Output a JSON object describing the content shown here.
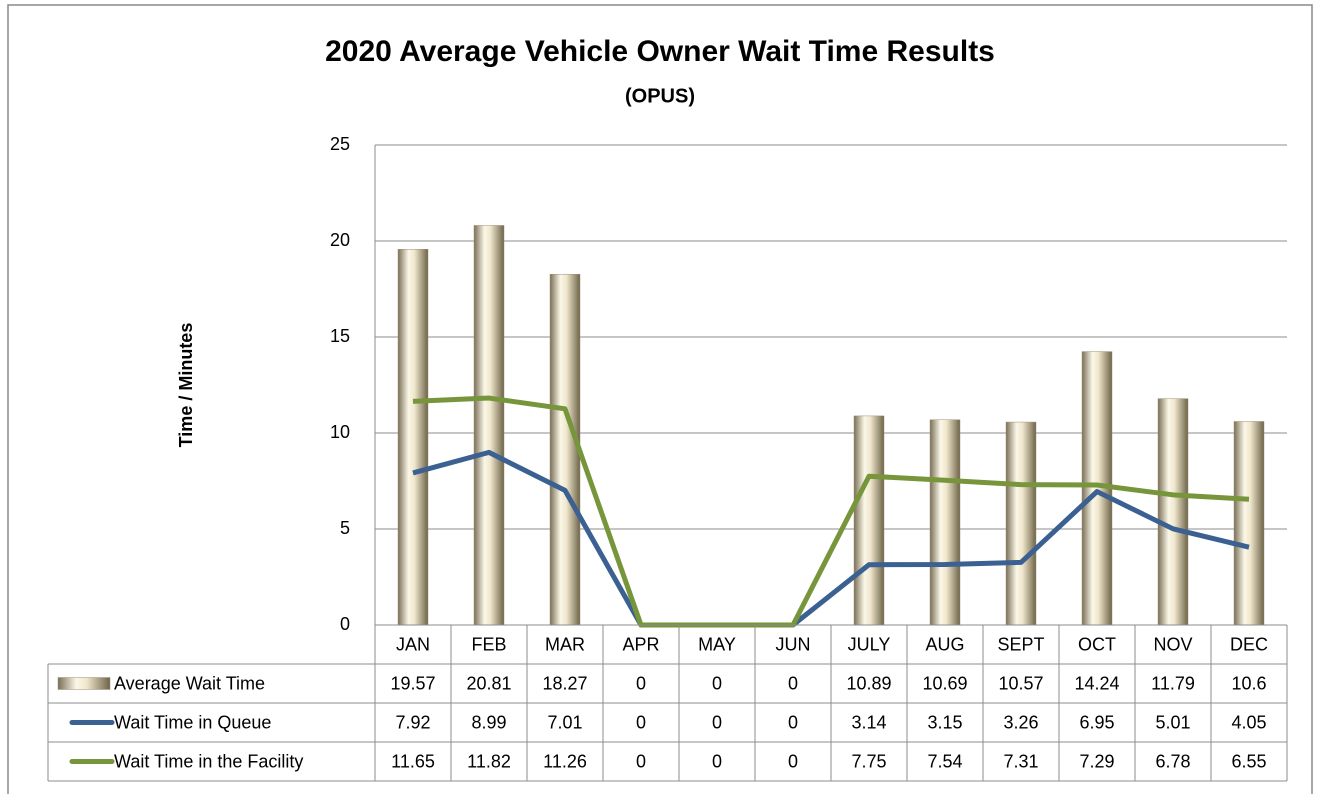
{
  "chart_data": {
    "type": "bar",
    "title": "2020 Average Vehicle Owner Wait Time Results",
    "subtitle": "(OPUS)",
    "y_label": "Time / Minutes",
    "categories": [
      "JAN",
      "FEB",
      "MAR",
      "APR",
      "MAY",
      "JUN",
      "JULY",
      "AUG",
      "SEPT",
      "OCT",
      "NOV",
      "DEC"
    ],
    "series": [
      {
        "name": "Average Wait Time",
        "type": "bar",
        "color": "#e6dcc2",
        "values": [
          19.57,
          20.81,
          18.27,
          0,
          0,
          0,
          10.89,
          10.69,
          10.57,
          14.24,
          11.79,
          10.6
        ]
      },
      {
        "name": "Wait Time in Queue",
        "type": "line",
        "color": "#3b6092",
        "values": [
          7.92,
          8.99,
          7.01,
          0,
          0,
          0,
          3.14,
          3.15,
          3.26,
          6.95,
          5.01,
          4.05
        ]
      },
      {
        "name": "Wait Time in the Facility",
        "type": "line",
        "color": "#77963b",
        "values": [
          11.65,
          11.82,
          11.26,
          0,
          0,
          0,
          7.75,
          7.54,
          7.31,
          7.29,
          6.78,
          6.55
        ]
      }
    ],
    "ylim": [
      0,
      25
    ],
    "yticks": [
      0,
      5,
      10,
      15,
      20,
      25
    ],
    "grid": true,
    "data_table": true
  }
}
